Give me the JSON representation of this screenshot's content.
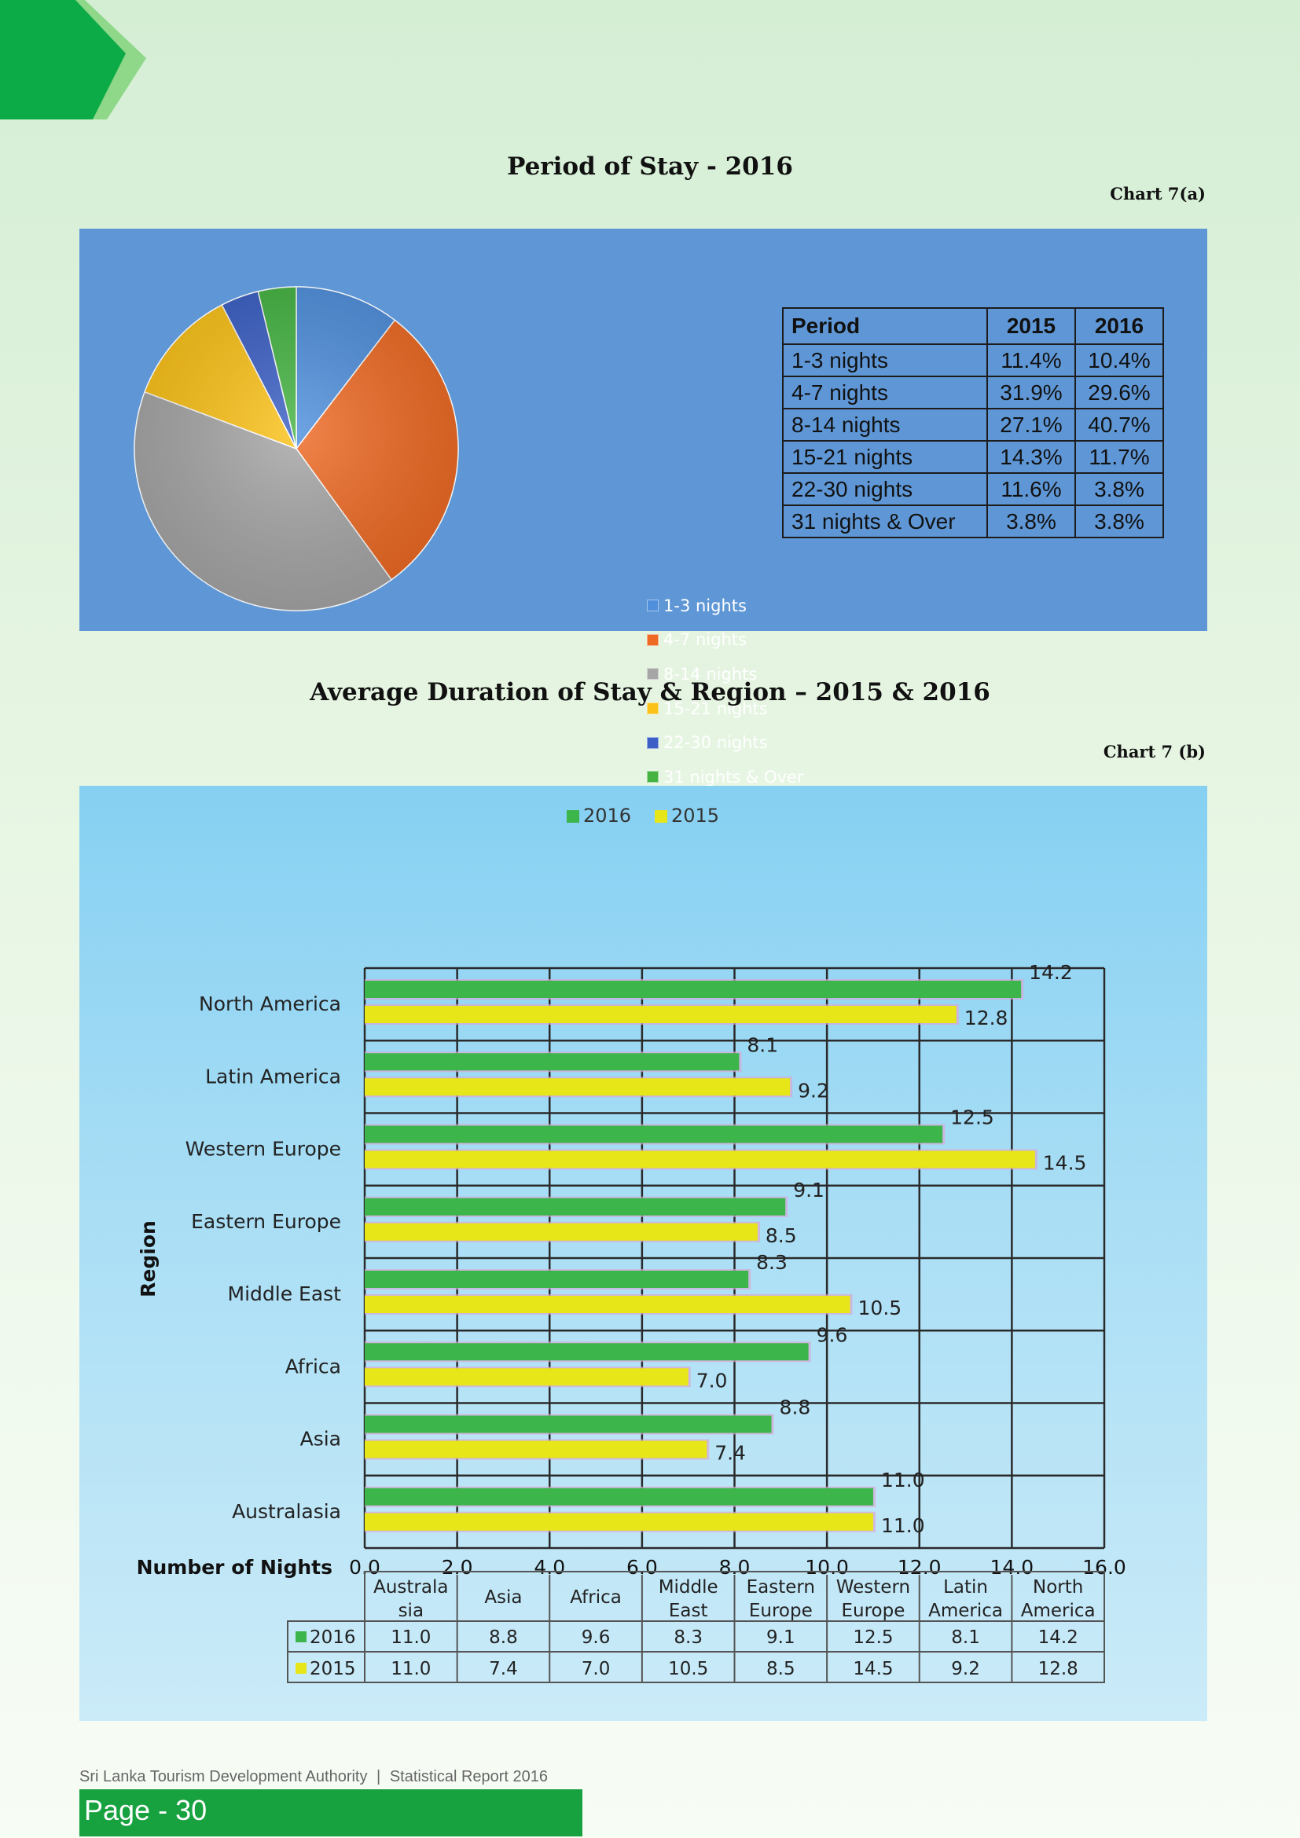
{
  "header": {
    "accent_color": "#0daa48",
    "accent_light": "#8fd88a"
  },
  "chart_a": {
    "title": "Period of Stay - 2016",
    "label": "Chart 7(a)",
    "legend_position": "center-right"
  },
  "chart_b": {
    "title": "Average Duration of Stay & Region – 2015 & 2016",
    "label": "Chart 7 (b)",
    "legend_position": "top-center"
  },
  "period_table": {
    "headers": [
      "Period",
      "2015",
      "2016"
    ],
    "rows": [
      [
        "1-3 nights",
        "11.4%",
        "10.4%"
      ],
      [
        "4-7 nights",
        "31.9%",
        "29.6%"
      ],
      [
        "8-14 nights",
        "27.1%",
        "40.7%"
      ],
      [
        "15-21 nights",
        "14.3%",
        "11.7%"
      ],
      [
        "22-30 nights",
        "11.6%",
        "3.8%"
      ],
      [
        "31 nights & Over",
        "3.8%",
        "3.8%"
      ]
    ]
  },
  "chart_data": [
    {
      "type": "pie",
      "title": "Period of Stay - 2016",
      "categories": [
        "1-3 nights",
        "4-7 nights",
        "8-14 nights",
        "15-21 nights",
        "22-30 nights",
        "31 nights & Over"
      ],
      "values": [
        10.4,
        29.6,
        40.7,
        11.7,
        3.8,
        3.8
      ],
      "colors": [
        "#4f8fdc",
        "#ee6a24",
        "#a6a6a6",
        "#fbc219",
        "#3b5fc4",
        "#44b342"
      ]
    },
    {
      "type": "bar",
      "orientation": "horizontal",
      "title": "Average Duration of Stay & Region – 2015 & 2016",
      "ylabel": "Region",
      "xlabel": "Number of Nights",
      "categories": [
        "North America",
        "Latin America",
        "Western Europe",
        "Eastern Europe",
        "Middle East",
        "Africa",
        "Asia",
        "Australasia"
      ],
      "series": [
        {
          "name": "2016",
          "color": "#3cb54a",
          "values": [
            14.2,
            8.1,
            12.5,
            9.1,
            8.3,
            9.6,
            8.8,
            11.0
          ]
        },
        {
          "name": "2015",
          "color": "#e6e619",
          "values": [
            12.8,
            9.2,
            14.5,
            8.5,
            10.5,
            7.0,
            7.4,
            11.0
          ]
        }
      ],
      "xlim": [
        0,
        16
      ],
      "xticks": [
        "0.0",
        "2.0",
        "4.0",
        "6.0",
        "8.0",
        "10.0",
        "12.0",
        "14.0",
        "16.0"
      ],
      "data_labels": {
        "2016": [
          "14.2",
          "8.1",
          "12.5",
          "9.1",
          "8.3",
          "9.6",
          "8.8",
          "11.0"
        ],
        "2015": [
          "12.8",
          "9.2",
          "14.5",
          "8.5",
          "10.5",
          "7.0",
          "7.4",
          "11.0"
        ]
      },
      "grid": true,
      "data_table": {
        "columns": [
          [
            "Australa",
            "sia"
          ],
          [
            "Asia"
          ],
          [
            "Africa"
          ],
          [
            "Middle",
            "East"
          ],
          [
            "Eastern",
            "Europe"
          ],
          [
            "Western",
            "Europe"
          ],
          [
            "Latin",
            "America"
          ],
          [
            "North",
            "America"
          ]
        ],
        "rows": [
          {
            "name": "2016",
            "values": [
              "11.0",
              "8.8",
              "9.6",
              "8.3",
              "9.1",
              "12.5",
              "8.1",
              "14.2"
            ]
          },
          {
            "name": "2015",
            "values": [
              "11.0",
              "7.4",
              "7.0",
              "10.5",
              "8.5",
              "14.5",
              "9.2",
              "12.8"
            ]
          }
        ]
      }
    }
  ],
  "footer": {
    "org": "Sri Lanka Tourism Development Authority",
    "separator": "|",
    "report": "Statistical Report 2016",
    "page": "Page - 30",
    "bar_color": "#17a13f"
  }
}
